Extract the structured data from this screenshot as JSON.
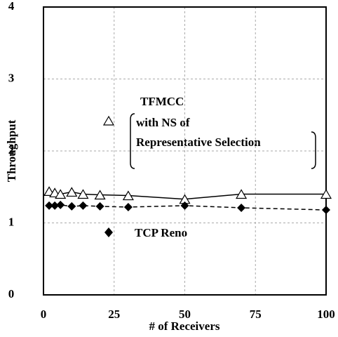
{
  "chart_data": {
    "type": "line",
    "x_label": "# of Receivers",
    "y_label": "Throughput",
    "xlim": [
      0,
      100
    ],
    "xticks": [
      0,
      25,
      50,
      75,
      100
    ],
    "ylim": [
      0,
      4
    ],
    "yticks": [
      0,
      1,
      2,
      3,
      4
    ],
    "grid": true,
    "annotations": [
      "with NS of",
      "Representative Selection"
    ],
    "series": [
      {
        "name": "TFMCC",
        "color": "#000000",
        "marker": "triangle",
        "line": "solid",
        "x": [
          2,
          4,
          6,
          10,
          14,
          20,
          30,
          50,
          70,
          100
        ],
        "values": [
          1.44,
          1.42,
          1.4,
          1.43,
          1.4,
          1.39,
          1.38,
          1.33,
          1.4,
          1.4
        ]
      },
      {
        "name": "TCP Reno",
        "color": "#000000",
        "marker": "diamond",
        "line": "dashed",
        "x": [
          2,
          4,
          6,
          10,
          14,
          20,
          30,
          50,
          70,
          100
        ],
        "values": [
          1.24,
          1.24,
          1.25,
          1.23,
          1.24,
          1.23,
          1.22,
          1.24,
          1.21,
          1.18
        ]
      }
    ]
  }
}
